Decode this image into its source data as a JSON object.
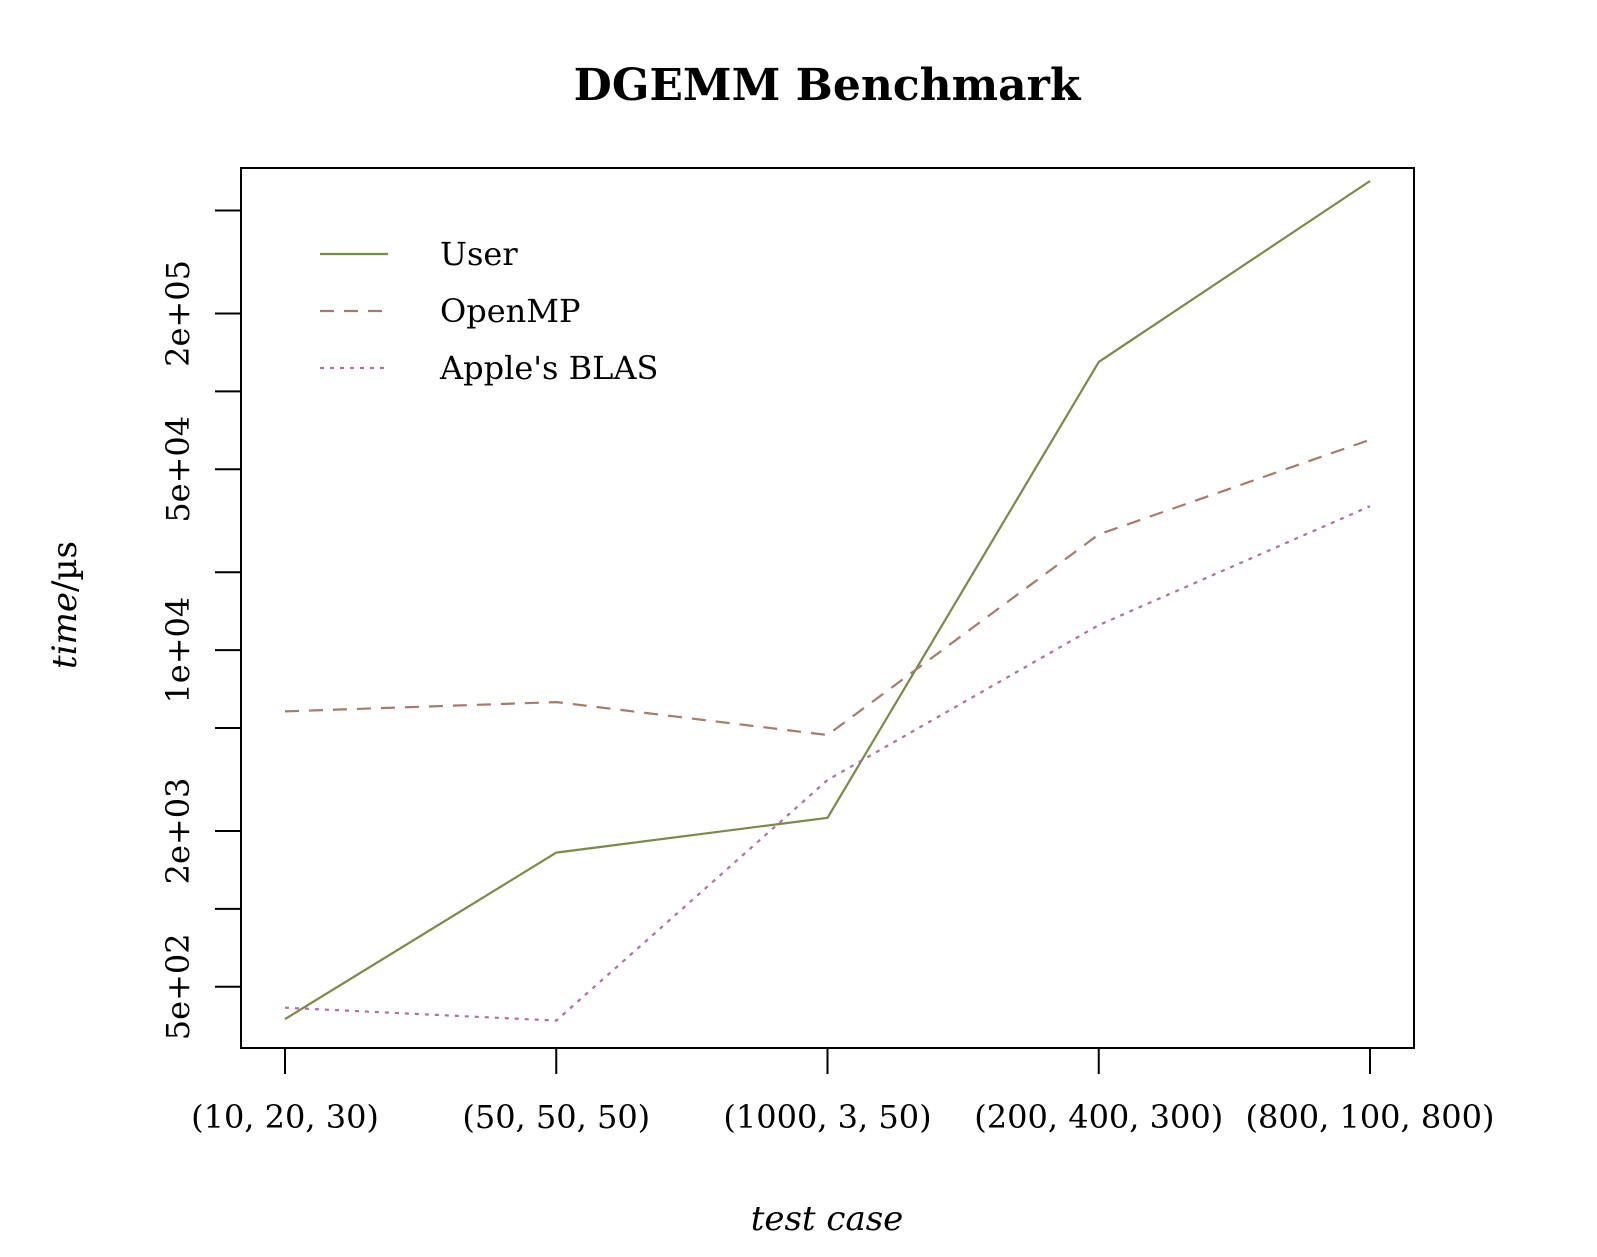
{
  "chart_data": {
    "type": "line",
    "title": "DGEMM Benchmark",
    "xlabel": "test case",
    "ylabel": {
      "italic": "time",
      "unit": "/µs"
    },
    "y_scale": "log",
    "categories": [
      "(10, 20, 30)",
      "(50, 50, 50)",
      "(1000, 3, 50)",
      "(200, 400, 300)",
      "(800, 100, 800)"
    ],
    "y_ticks": [
      {
        "value": 500,
        "label": "5e+02"
      },
      {
        "value": 1000,
        "label": ""
      },
      {
        "value": 2000,
        "label": "2e+03"
      },
      {
        "value": 5000,
        "label": ""
      },
      {
        "value": 10000,
        "label": "1e+04"
      },
      {
        "value": 20000,
        "label": ""
      },
      {
        "value": 50000,
        "label": "5e+04"
      },
      {
        "value": 100000,
        "label": ""
      },
      {
        "value": 200000,
        "label": "2e+05"
      },
      {
        "value": 500000,
        "label": ""
      }
    ],
    "ylim": [
      290,
      730000
    ],
    "legend_position": "top-left",
    "grid": false,
    "series": [
      {
        "name": "User",
        "color": "#7a8a4a",
        "dash": "solid",
        "values": [
          375,
          1650,
          2250,
          130000,
          650000
        ]
      },
      {
        "name": "OpenMP",
        "color": "#a87a6a",
        "dash": "dashed",
        "values": [
          5800,
          6300,
          4700,
          28000,
          65000
        ]
      },
      {
        "name": "Apple's BLAS",
        "color": "#b070a0",
        "dash": "dotted",
        "values": [
          415,
          370,
          3150,
          12500,
          36000
        ]
      }
    ]
  }
}
